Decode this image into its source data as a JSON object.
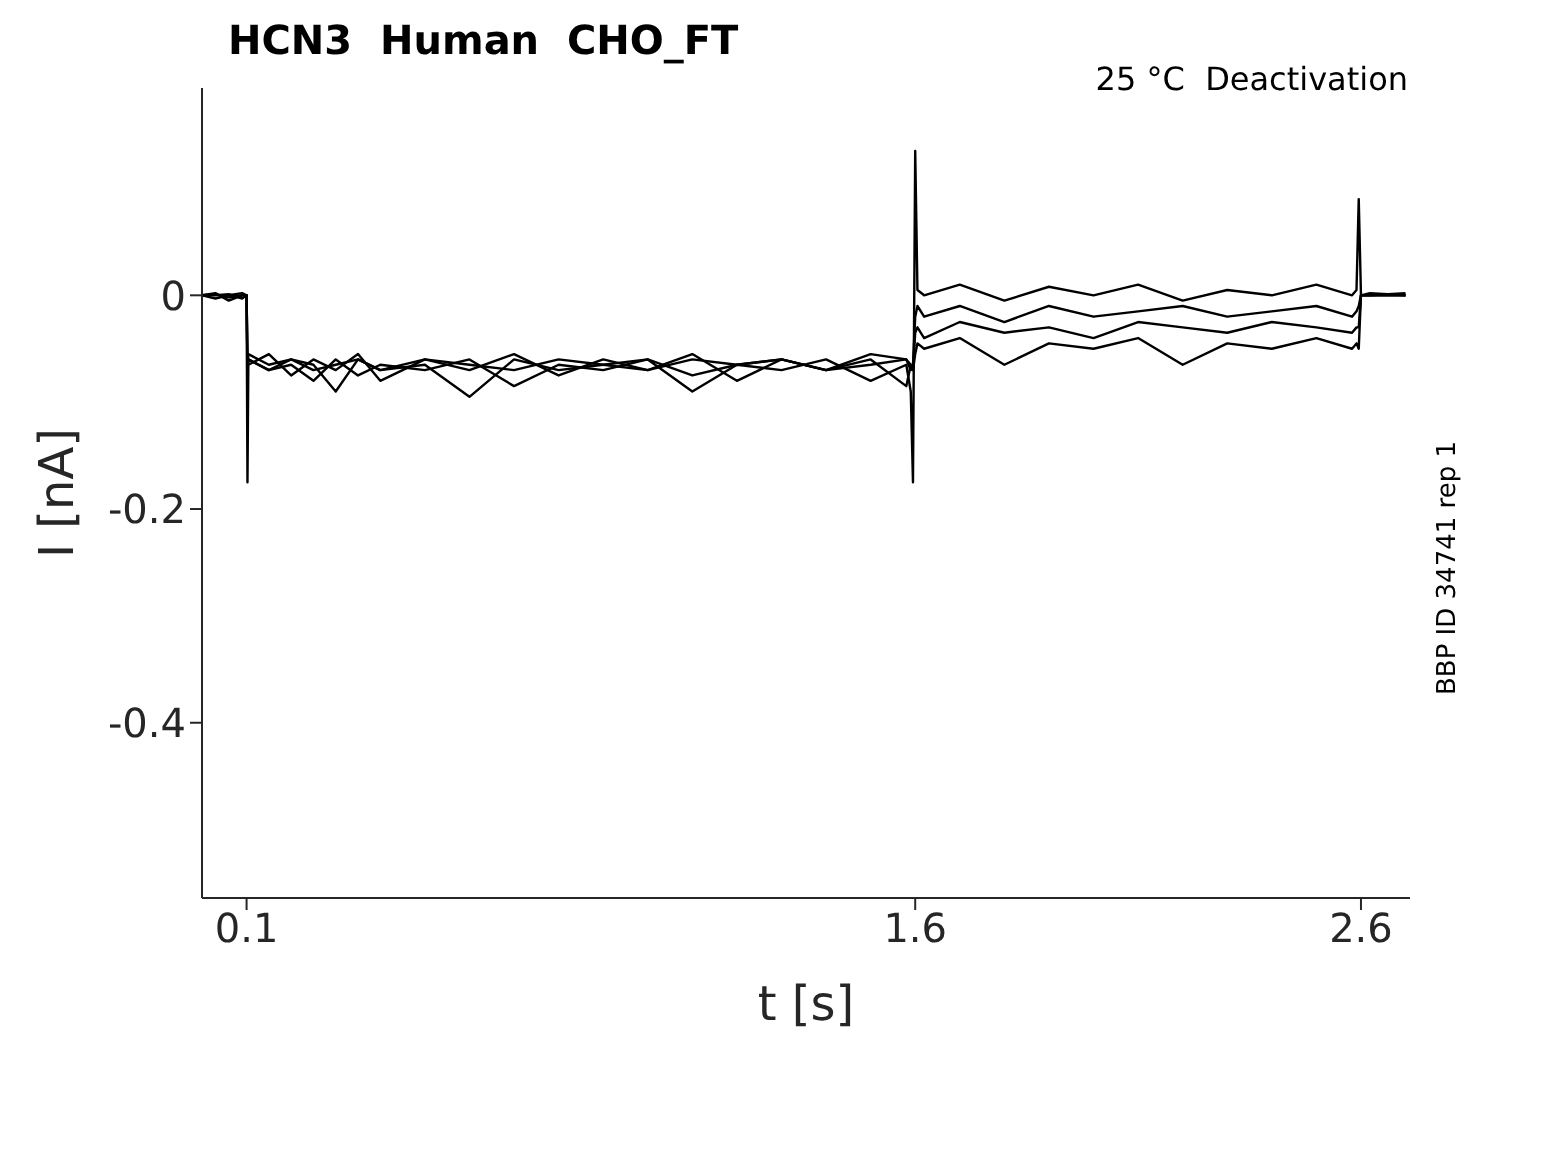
{
  "chart_data": {
    "type": "line",
    "title": "HCN3  Human  CHO_FT",
    "xlabel": "t [s]",
    "ylabel": "I [nA]",
    "annotations": [
      "25 °C  Deactivation",
      "BBP ID 34741 rep 1"
    ],
    "x": [
      0,
      0.03,
      0.06,
      0.09,
      0.1,
      0.102,
      0.104,
      0.15,
      0.2,
      0.25,
      0.3,
      0.35,
      0.4,
      0.5,
      0.6,
      0.7,
      0.8,
      0.9,
      1.0,
      1.1,
      1.2,
      1.3,
      1.4,
      1.5,
      1.58,
      1.59,
      1.595,
      1.6,
      1.605,
      1.62,
      1.7,
      1.8,
      1.9,
      2.0,
      2.1,
      2.2,
      2.3,
      2.4,
      2.5,
      2.58,
      2.59,
      2.595,
      2.6,
      2.62,
      2.7
    ],
    "series": [
      {
        "color": "#000000",
        "values": [
          0,
          0.002,
          -0.005,
          0,
          0,
          -0.175,
          -0.06,
          -0.07,
          -0.065,
          -0.08,
          -0.06,
          -0.075,
          -0.065,
          -0.07,
          -0.06,
          -0.085,
          -0.065,
          -0.07,
          -0.06,
          -0.075,
          -0.065,
          -0.07,
          -0.06,
          -0.08,
          -0.065,
          -0.09,
          -0.175,
          0.135,
          0.005,
          0,
          0.01,
          -0.005,
          0.008,
          0,
          0.01,
          -0.005,
          0.005,
          0,
          0.01,
          0,
          0.005,
          0.09,
          0,
          0,
          0
        ]
      },
      {
        "color": "#000000",
        "values": [
          0,
          -0.003,
          0,
          0.002,
          0,
          -0.06,
          -0.065,
          -0.055,
          -0.075,
          -0.06,
          -0.07,
          -0.055,
          -0.08,
          -0.06,
          -0.07,
          -0.055,
          -0.075,
          -0.06,
          -0.07,
          -0.055,
          -0.08,
          -0.06,
          -0.07,
          -0.055,
          -0.06,
          -0.07,
          -0.065,
          -0.02,
          -0.01,
          -0.02,
          -0.01,
          -0.025,
          -0.01,
          -0.02,
          -0.015,
          -0.01,
          -0.02,
          -0.015,
          -0.01,
          -0.02,
          -0.015,
          -0.01,
          0,
          0.002,
          0
        ]
      },
      {
        "color": "#000000",
        "values": [
          0,
          0.001,
          -0.002,
          0,
          0,
          -0.065,
          -0.06,
          -0.07,
          -0.06,
          -0.065,
          -0.09,
          -0.06,
          -0.07,
          -0.065,
          -0.095,
          -0.06,
          -0.07,
          -0.065,
          -0.06,
          -0.09,
          -0.065,
          -0.06,
          -0.07,
          -0.06,
          -0.085,
          -0.065,
          -0.07,
          -0.035,
          -0.03,
          -0.04,
          -0.025,
          -0.035,
          -0.03,
          -0.04,
          -0.025,
          -0.03,
          -0.035,
          -0.025,
          -0.03,
          -0.035,
          -0.03,
          -0.03,
          0,
          0,
          0.002
        ]
      },
      {
        "color": "#000000",
        "values": [
          0,
          0,
          0.001,
          -0.003,
          0,
          -0.07,
          -0.055,
          -0.065,
          -0.06,
          -0.07,
          -0.065,
          -0.06,
          -0.07,
          -0.06,
          -0.065,
          -0.07,
          -0.06,
          -0.065,
          -0.07,
          -0.06,
          -0.065,
          -0.06,
          -0.07,
          -0.065,
          -0.06,
          -0.065,
          -0.07,
          -0.055,
          -0.045,
          -0.05,
          -0.04,
          -0.065,
          -0.045,
          -0.05,
          -0.04,
          -0.065,
          -0.045,
          -0.05,
          -0.04,
          -0.05,
          -0.045,
          -0.05,
          0,
          0,
          0
        ]
      }
    ],
    "xlim": [
      0,
      2.71
    ],
    "ylim": [
      -0.564,
      0.194
    ],
    "xticks": [
      0.1,
      1.6,
      2.6
    ],
    "yticks": [
      -0.4,
      -0.2,
      0
    ]
  }
}
